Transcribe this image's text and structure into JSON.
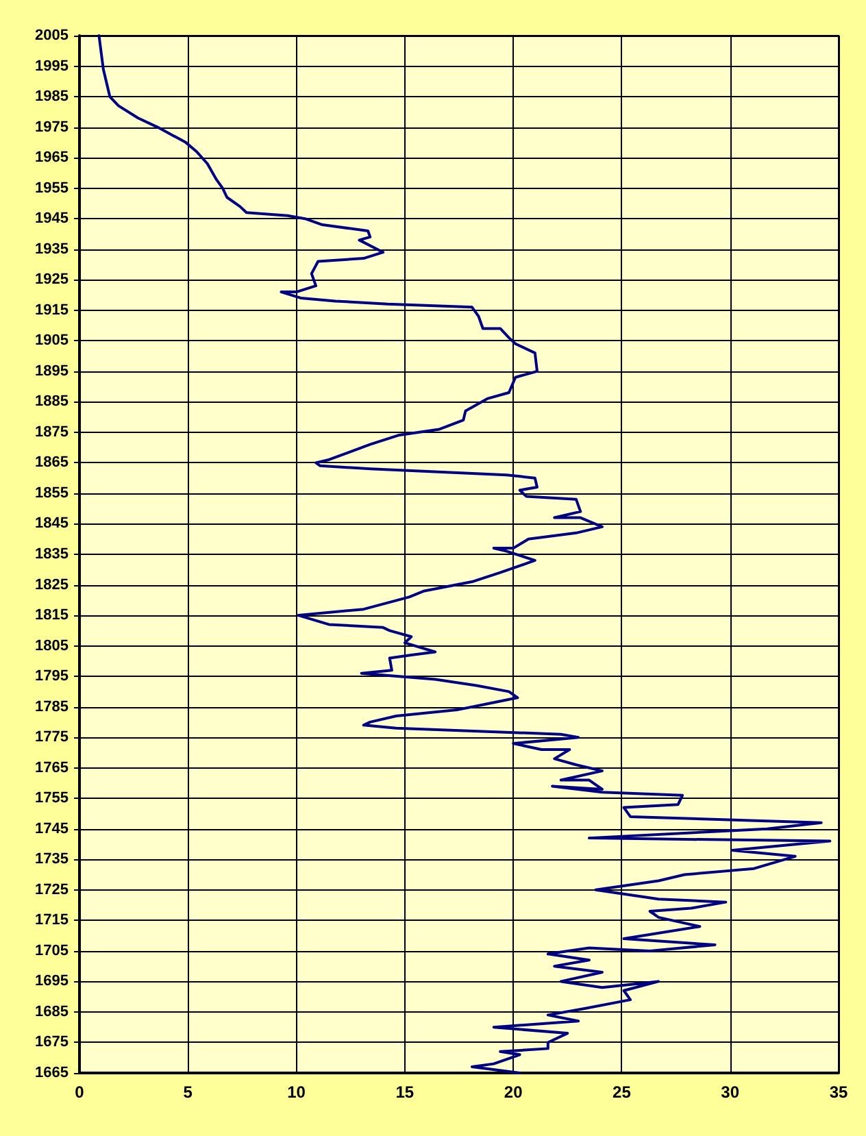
{
  "chart_data": {
    "type": "line",
    "marker": "none",
    "line_style": "solid",
    "grid": true,
    "xlim": [
      0,
      35
    ],
    "xticks": [
      0,
      5,
      10,
      15,
      20,
      25,
      30,
      35
    ],
    "ylim": [
      1665,
      2005
    ],
    "yticks": [
      1665,
      1675,
      1685,
      1695,
      1705,
      1715,
      1725,
      1735,
      1745,
      1755,
      1765,
      1775,
      1785,
      1795,
      1805,
      1815,
      1825,
      1835,
      1845,
      1855,
      1865,
      1875,
      1885,
      1895,
      1905,
      1915,
      1925,
      1935,
      1945,
      1955,
      1965,
      1975,
      1985,
      1995,
      2005
    ],
    "series": [
      {
        "color": "#000080",
        "x": [
          0.9,
          1.1,
          1.4,
          1.8,
          2.7,
          3.6,
          4.9,
          5.4,
          5.9,
          6.3,
          6.6,
          6.8,
          7.4,
          7.7,
          9.6,
          10.4,
          11.2,
          13.3,
          13.4,
          12.9,
          14.0,
          13.1,
          11.0,
          10.7,
          10.9,
          10.0,
          9.3,
          10.2,
          11.8,
          14.2,
          18.1,
          18.4,
          18.6,
          19.4,
          19.8,
          20.1,
          21.0,
          21.1,
          20.1,
          19.8,
          18.8,
          17.8,
          17.7,
          16.6,
          14.7,
          13.4,
          11.5,
          10.9,
          11.1,
          13.4,
          19.7,
          21.0,
          21.1,
          20.3,
          20.6,
          22.9,
          23.1,
          21.9,
          23.1,
          24.1,
          22.9,
          20.7,
          20.0,
          19.1,
          19.7,
          21.0,
          19.4,
          18.1,
          15.9,
          15.2,
          13.1,
          10.1,
          11.5,
          14.0,
          14.3,
          15.3,
          15.0,
          16.4,
          15.3,
          14.3,
          14.4,
          13.0,
          16.4,
          18.3,
          19.8,
          20.2,
          18.8,
          17.4,
          14.6,
          13.4,
          13.1,
          14.6,
          22.2,
          23.0,
          20.0,
          21.3,
          22.6,
          21.9,
          22.9,
          24.1,
          22.2,
          23.5,
          24.1,
          21.8,
          24.1,
          27.8,
          27.6,
          25.1,
          25.4,
          34.2,
          31.7,
          23.5,
          34.6,
          30.1,
          33.0,
          31.1,
          27.9,
          26.7,
          23.8,
          26.7,
          29.8,
          28.2,
          26.3,
          26.7,
          28.6,
          25.1,
          29.3,
          26.3,
          23.5,
          21.6,
          23.5,
          21.9,
          24.1,
          22.2,
          24.1,
          26.7,
          25.1,
          25.4,
          23.2,
          21.6,
          23.0,
          19.1,
          22.5,
          21.6,
          21.6,
          19.4,
          20.3,
          19.1,
          18.1,
          20.3
        ],
        "values": [
          2005,
          1994,
          1985,
          1982,
          1978,
          1975,
          1970,
          1967,
          1963,
          1958,
          1955,
          1952,
          1949,
          1947,
          1946,
          1945,
          1943,
          1941,
          1939,
          1938,
          1934,
          1932,
          1931,
          1927,
          1923,
          1921,
          1921,
          1919,
          1918,
          1917,
          1916,
          1913,
          1909,
          1909,
          1906,
          1904,
          1901,
          1895,
          1893,
          1888,
          1886,
          1882,
          1879,
          1876,
          1874,
          1871,
          1866,
          1865,
          1864,
          1863,
          1861,
          1860,
          1857,
          1856,
          1854,
          1853,
          1849,
          1847,
          1847,
          1844,
          1842,
          1840,
          1837,
          1837,
          1836,
          1833,
          1829,
          1826,
          1823,
          1821,
          1817,
          1815,
          1812,
          1811,
          1810,
          1808,
          1806,
          1803,
          1802,
          1801,
          1797,
          1796,
          1794,
          1792,
          1790,
          1788,
          1786,
          1784,
          1782,
          1780,
          1779,
          1778,
          1776,
          1775,
          1773,
          1771,
          1771,
          1768,
          1766,
          1764,
          1761,
          1761,
          1758,
          1759,
          1757,
          1756,
          1753,
          1752,
          1749,
          1747,
          1745,
          1742,
          1741,
          1738,
          1736,
          1732,
          1730,
          1728,
          1725,
          1722,
          1721,
          1719,
          1718,
          1716,
          1713,
          1709,
          1707,
          1705,
          1706,
          1704,
          1702,
          1700,
          1698,
          1695,
          1693,
          1695,
          1692,
          1689,
          1686,
          1684,
          1682,
          1680,
          1678,
          1675,
          1673,
          1672,
          1671,
          1668,
          1667,
          1665
        ]
      }
    ]
  }
}
